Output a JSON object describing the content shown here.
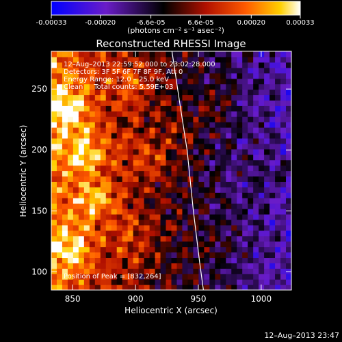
{
  "chart_data": {
    "type": "heatmap",
    "title": "Reconstructed RHESSI Image",
    "xlabel": "Heliocentric X (arcsec)",
    "ylabel": "Heliocentric Y (arcsec)",
    "xlim": [
      833,
      1024
    ],
    "ylim": [
      85,
      281
    ],
    "x_ticks": [
      850,
      900,
      950,
      1000
    ],
    "y_ticks": [
      100,
      150,
      200,
      250
    ],
    "x_tick_labels": [
      "850",
      "900",
      "950",
      "1000"
    ],
    "y_tick_labels": [
      "100",
      "150",
      "200",
      "250"
    ],
    "colorbar": {
      "range": [
        -0.00033,
        0.00033
      ],
      "ticks": [
        -0.00033,
        -0.0002,
        -6.6e-05,
        6.6e-05,
        0.0002,
        0.00033
      ],
      "tick_labels": [
        "-0.00033",
        "-0.00020",
        "-6.6e-05",
        "6.6e-05",
        "0.00020",
        "0.00033"
      ],
      "units_label": "(photons cm⁻² s⁻¹ asec⁻²)",
      "colors": [
        "#0000ff",
        "#6a1cc8",
        "#000000",
        "#b01000",
        "#ff5a00",
        "#ffd000",
        "#ffffff"
      ]
    },
    "annotations": {
      "time_range": "12–Aug–2013 22:59:52.000 to 23:02:28.000",
      "detectors": "Detectors: 3F 5F 6F 7F 8F 9F, Att 0",
      "energy_range": "Energy Range: 12.0 – 25.0 keV",
      "clean_counts": "Clean     Total counts: 5.59E+03",
      "peak_position": "Position of Peak = [832,264]"
    },
    "peak": [
      832,
      264
    ],
    "limb_curve": [
      [
        929,
        281
      ],
      [
        935,
        240
      ],
      [
        941,
        200
      ],
      [
        946,
        150
      ],
      [
        951,
        108
      ],
      [
        954,
        85
      ]
    ],
    "hotspots": [
      {
        "x": 845,
        "y": 235,
        "value": 0.0003
      },
      {
        "x": 860,
        "y": 200,
        "value": 0.00028
      },
      {
        "x": 870,
        "y": 160,
        "value": 0.00026
      },
      {
        "x": 850,
        "y": 120,
        "value": 0.00024
      },
      {
        "x": 900,
        "y": 255,
        "value": 0.0002
      },
      {
        "x": 910,
        "y": 195,
        "value": 0.00018
      },
      {
        "x": 900,
        "y": 130,
        "value": 0.00015
      },
      {
        "x": 935,
        "y": 215,
        "value": 0.00012
      },
      {
        "x": 965,
        "y": 240,
        "value": 0.0001
      },
      {
        "x": 1010,
        "y": 185,
        "value": 9e-05
      },
      {
        "x": 960,
        "y": 120,
        "value": 8e-05
      }
    ],
    "gradient": {
      "left_value": 0.00022,
      "right_value": -0.00018
    }
  },
  "footer_timestamp": "12–Aug–2013 23:47"
}
